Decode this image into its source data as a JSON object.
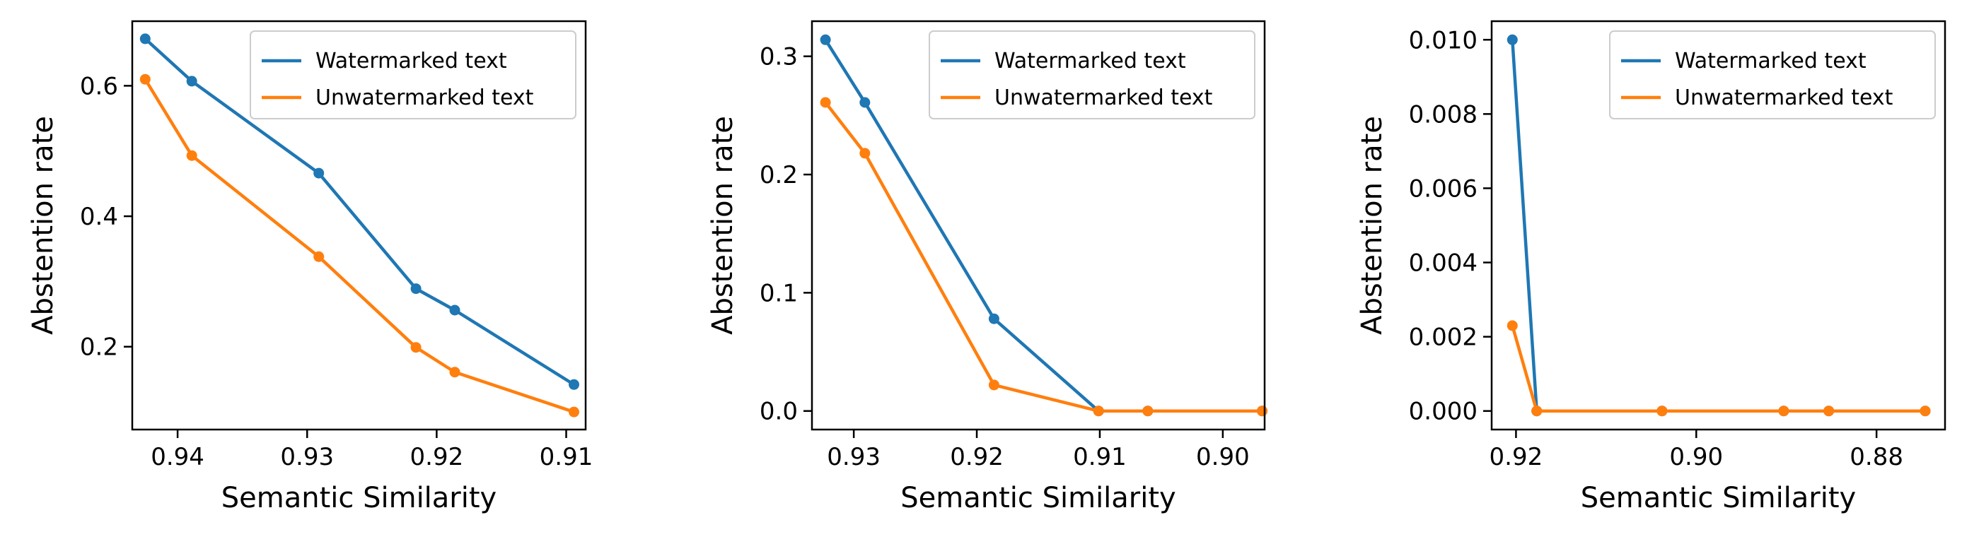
{
  "chart_data": [
    {
      "type": "line",
      "title": "",
      "xlabel": "Semantic Similarity",
      "ylabel": "Abstention rate",
      "x_inverted": true,
      "xlim": [
        0.9435,
        0.9085
      ],
      "ylim": [
        0.073,
        0.699
      ],
      "xticks": [
        0.94,
        0.93,
        0.92,
        0.91
      ],
      "xtick_labels": [
        "0.94",
        "0.93",
        "0.92",
        "0.91"
      ],
      "yticks": [
        0.2,
        0.4,
        0.6
      ],
      "ytick_labels": [
        "0.2",
        "0.4",
        "0.6"
      ],
      "grid": false,
      "legend_position": "upper-right",
      "series": [
        {
          "name": "Watermarked text",
          "color": "#1f77b4",
          "x": [
            0.9425,
            0.9389,
            0.9291,
            0.9216,
            0.9186,
            0.9094
          ],
          "y": [
            0.672,
            0.607,
            0.466,
            0.289,
            0.256,
            0.142
          ]
        },
        {
          "name": "Unwatermarked text",
          "color": "#ff7f0e",
          "x": [
            0.9425,
            0.9389,
            0.9291,
            0.9216,
            0.9186,
            0.9094
          ],
          "y": [
            0.61,
            0.493,
            0.338,
            0.199,
            0.161,
            0.1
          ]
        }
      ]
    },
    {
      "type": "line",
      "title": "",
      "xlabel": "Semantic Similarity",
      "ylabel": "Abstention rate",
      "x_inverted": true,
      "xlim": [
        0.9334,
        0.8966
      ],
      "ylim": [
        -0.0157,
        0.3297
      ],
      "xticks": [
        0.93,
        0.92,
        0.91,
        0.9
      ],
      "xtick_labels": [
        "0.93",
        "0.92",
        "0.91",
        "0.90"
      ],
      "yticks": [
        0.0,
        0.1,
        0.2,
        0.3
      ],
      "ytick_labels": [
        "0.0",
        "0.1",
        "0.2",
        "0.3"
      ],
      "grid": false,
      "legend_position": "upper-right",
      "series": [
        {
          "name": "Watermarked text",
          "color": "#1f77b4",
          "x": [
            0.9323,
            0.9291,
            0.9186,
            0.9101,
            0.9061,
            0.8968
          ],
          "y": [
            0.314,
            0.261,
            0.078,
            0.0,
            0.0,
            0.0
          ]
        },
        {
          "name": "Unwatermarked text",
          "color": "#ff7f0e",
          "x": [
            0.9323,
            0.9291,
            0.9186,
            0.9101,
            0.9061,
            0.8968
          ],
          "y": [
            0.261,
            0.218,
            0.022,
            0.0,
            0.0,
            0.0
          ]
        }
      ]
    },
    {
      "type": "line",
      "title": "",
      "xlabel": "Semantic Similarity",
      "ylabel": "Abstention rate",
      "x_inverted": true,
      "xlim": [
        0.9227,
        0.8724
      ],
      "ylim": [
        -0.0005,
        0.0105
      ],
      "xticks": [
        0.92,
        0.9,
        0.88
      ],
      "xtick_labels": [
        "0.92",
        "0.90",
        "0.88"
      ],
      "yticks": [
        0.0,
        0.002,
        0.004,
        0.006,
        0.008,
        0.01
      ],
      "ytick_labels": [
        "0.000",
        "0.002",
        "0.004",
        "0.006",
        "0.008",
        "0.010"
      ],
      "grid": false,
      "legend_position": "upper-right",
      "series": [
        {
          "name": "Watermarked text",
          "color": "#1f77b4",
          "x": [
            0.9204,
            0.9177,
            0.9038,
            0.8903,
            0.8853,
            0.8746
          ],
          "y": [
            0.01,
            0.0,
            0.0,
            0.0,
            0.0,
            0.0
          ]
        },
        {
          "name": "Unwatermarked text",
          "color": "#ff7f0e",
          "x": [
            0.9204,
            0.9177,
            0.9038,
            0.8903,
            0.8853,
            0.8746
          ],
          "y": [
            0.0023,
            0.0,
            0.0,
            0.0,
            0.0,
            0.0
          ]
        }
      ]
    }
  ]
}
